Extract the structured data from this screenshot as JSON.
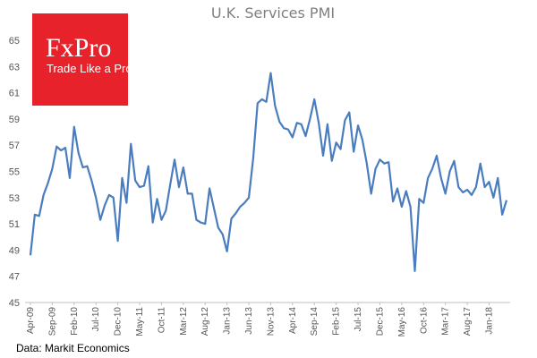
{
  "chart_data": {
    "type": "line",
    "title": "U.K. Services PMI",
    "source": "Data: Markit Economics",
    "logo": {
      "brand": "FxPro",
      "tagline": "Trade Like a Pro",
      "color": "#e8222a"
    },
    "line_color": "#4a7dbf",
    "ylim": [
      45,
      65
    ],
    "yticks": [
      65,
      63,
      61,
      59,
      57,
      55,
      53,
      51,
      49,
      47,
      45
    ],
    "grid": false,
    "xtick_labels": [
      "Apr-09",
      "Sep-09",
      "Feb-10",
      "Jul-10",
      "Dec-10",
      "May-11",
      "Oct-11",
      "Mar-12",
      "Aug-12",
      "Jan-13",
      "Jun-13",
      "Nov-13",
      "Apr-14",
      "Sep-14",
      "Feb-15",
      "Jul-15",
      "Dec-15",
      "May-16",
      "Oct-16",
      "Mar-17",
      "Aug-17",
      "Jan-18"
    ],
    "x_start": "Apr-09",
    "x_end": "Jun-18",
    "series": [
      {
        "values": [
          48.6,
          51.7,
          51.6,
          53.2,
          54.1,
          55.2,
          56.9,
          56.6,
          56.8,
          54.5,
          58.4,
          56.4,
          55.3,
          55.4,
          54.3,
          53.0,
          51.3,
          52.4,
          53.2,
          53.0,
          49.7,
          54.5,
          52.6,
          57.1,
          54.3,
          53.8,
          53.9,
          55.4,
          51.1,
          52.9,
          51.3,
          52.0,
          54.0,
          55.9,
          53.8,
          55.3,
          53.3,
          53.3,
          51.3,
          51.1,
          51.0,
          53.7,
          52.2,
          50.7,
          50.2,
          48.9,
          51.4,
          51.8,
          52.3,
          52.6,
          53.0,
          56.0,
          60.2,
          60.5,
          60.3,
          62.5,
          60.0,
          58.8,
          58.3,
          58.2,
          57.6,
          58.7,
          58.6,
          57.7,
          59.0,
          60.5,
          58.7,
          56.2,
          58.6,
          55.8,
          57.2,
          56.7,
          58.9,
          59.5,
          56.5,
          58.5,
          57.4,
          55.6,
          53.3,
          55.2,
          55.9,
          55.6,
          55.7,
          52.7,
          53.7,
          52.3,
          53.5,
          52.3,
          47.4,
          52.9,
          52.6,
          54.5,
          55.2,
          56.2,
          54.5,
          53.3,
          55.0,
          55.8,
          53.8,
          53.4,
          53.6,
          53.2,
          53.8,
          55.6,
          53.8,
          54.2,
          53.0,
          54.5,
          51.7,
          52.8
        ]
      }
    ]
  }
}
